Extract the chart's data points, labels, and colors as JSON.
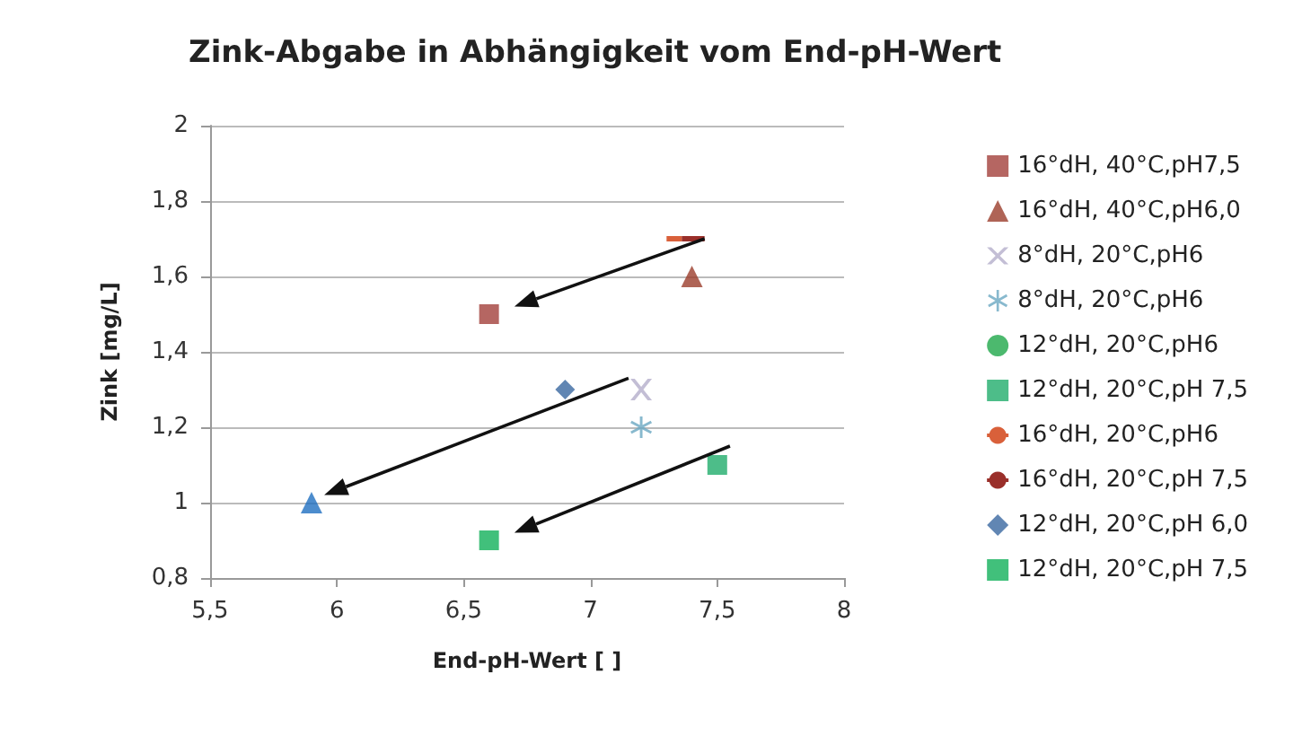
{
  "chart_data": {
    "type": "scatter",
    "title": "Zink-Abgabe in Abhängigkeit vom End-pH-Wert",
    "xlabel": "End-pH-Wert [ ]",
    "ylabel": "Zink [mg/L]",
    "xlim": [
      5.5,
      8
    ],
    "xticks": [
      {
        "value": 5.5,
        "label": "5,5"
      },
      6,
      {
        "value": 6.5,
        "label": "6,5"
      },
      7,
      {
        "value": 7.5,
        "label": "7,5"
      },
      8
    ],
    "ylim": [
      0.8,
      2
    ],
    "yticks": [
      {
        "value": 0.8,
        "label": "0,8"
      },
      1,
      {
        "value": 1.2,
        "label": "1,2"
      },
      {
        "value": 1.4,
        "label": "1,4"
      },
      {
        "value": 1.6,
        "label": "1,6"
      },
      {
        "value": 1.8,
        "label": "1,8"
      },
      2
    ],
    "series": [
      {
        "name": "16°dH, 40°C,pH7,5",
        "color": "#a3403b",
        "marker": "square",
        "x": [
          6.6
        ],
        "values": [
          1.5
        ]
      },
      {
        "name": "16°dH, 40°C,pH6,0",
        "color": "#9b3d2c",
        "marker": "triangle",
        "x": [
          7.4
        ],
        "values": [
          1.6
        ]
      },
      {
        "name": "8°dH, 20°C,pH6",
        "color": "#b4aecb",
        "marker": "cross",
        "x": [
          7.2
        ],
        "values": [
          1.3
        ]
      },
      {
        "name": "8°dH, 20°C,pH6",
        "color": "#6aa8c2",
        "marker": "star",
        "x": [
          7.2
        ],
        "values": [
          1.2
        ]
      },
      {
        "name": "12°dH, 20°C,pH6",
        "color": "#1fa84a",
        "marker": "circle"
      },
      {
        "name": "12°dH, 20°C,pH 7,5",
        "color": "#20ad6c",
        "marker": "square",
        "x": [
          7.5
        ],
        "values": [
          1.1
        ]
      },
      {
        "name": "16°dH, 20°C,pH6",
        "color": "#d9603a",
        "type": "line",
        "marker": "none",
        "x": [
          7.3,
          7.36
        ],
        "values": [
          1.7,
          1.7
        ]
      },
      {
        "name": "16°dH, 20°C,pH 7,5",
        "color": "#9a2f2a",
        "type": "line",
        "marker": "none",
        "x": [
          7.36,
          7.45
        ],
        "values": [
          1.7,
          1.7
        ]
      },
      {
        "name": "12°dH, 20°C,pH 6,0",
        "color": "#3a68a0",
        "marker": "diamond",
        "x": [
          6.9
        ],
        "values": [
          1.3
        ]
      },
      {
        "name": "12°dH, 20°C,pH 7,5",
        "color": "#12b05a",
        "marker": "square",
        "x": [
          6.6
        ],
        "values": [
          0.9
        ]
      },
      {
        "color": "#1f6fc0",
        "marker": "triangle",
        "x": [
          5.9
        ],
        "values": [
          1.0
        ]
      }
    ],
    "grid": "y",
    "legend": "right"
  }
}
